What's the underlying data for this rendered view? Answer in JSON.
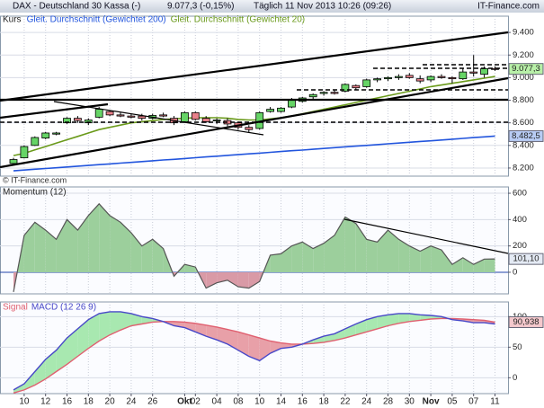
{
  "header": {
    "title": "DAX - Deutschland 30 Kassa (-)",
    "quote": "9.077,3 (-0,15%)",
    "timestamp": "Täglich  11 Nov 2013 10:26 (09:26)",
    "brand": "IT-Finance.com"
  },
  "chart_data": [
    {
      "type": "candlestick",
      "legend_title": "Kurs",
      "watermark": "© IT-Finance.com",
      "categories": [
        null,
        "10",
        null,
        "12",
        null,
        "16",
        null,
        "18",
        null,
        "20",
        null,
        "24",
        null,
        "26",
        null,
        null,
        "Okt",
        "02",
        null,
        "04",
        null,
        "08",
        null,
        "10",
        null,
        "14",
        null,
        "16",
        null,
        "18",
        null,
        "22",
        null,
        "24",
        null,
        "28",
        null,
        "30",
        null,
        "Nov",
        null,
        "05",
        null,
        "07",
        null,
        "11"
      ],
      "open": [
        8240,
        8290,
        8400,
        8465,
        8500,
        8600,
        8640,
        8600,
        8650,
        8700,
        8670,
        8660,
        8660,
        8640,
        8670,
        8640,
        8610,
        8690,
        8640,
        8620,
        8620,
        8600,
        8560,
        8550,
        8700,
        8700,
        8740,
        8790,
        8830,
        8860,
        8870,
        8880,
        8930,
        8920,
        8980,
        8990,
        9000,
        9020,
        8990,
        8980,
        9010,
        9000,
        8990,
        9050,
        9030,
        9080
      ],
      "high": [
        8290,
        8400,
        8480,
        8520,
        8520,
        8650,
        8660,
        8640,
        8740,
        8710,
        8690,
        8680,
        8680,
        8680,
        8690,
        8660,
        8700,
        8700,
        8660,
        8640,
        8640,
        8610,
        8580,
        8700,
        8740,
        8740,
        8820,
        8830,
        8860,
        8880,
        8890,
        8950,
        8940,
        8990,
        9000,
        9010,
        9030,
        9040,
        9020,
        9020,
        9030,
        9010,
        9080,
        9200,
        9100,
        9100
      ],
      "low": [
        8230,
        8285,
        8395,
        8455,
        8490,
        8590,
        8600,
        8580,
        8640,
        8660,
        8650,
        8640,
        8620,
        8630,
        8650,
        8580,
        8600,
        8620,
        8600,
        8590,
        8570,
        8540,
        8510,
        8540,
        8690,
        8690,
        8730,
        8780,
        8810,
        8840,
        8850,
        8870,
        8890,
        8910,
        8960,
        8970,
        8980,
        8990,
        8950,
        8960,
        8990,
        8950,
        8980,
        9010,
        9000,
        9060
      ],
      "close": [
        8275,
        8390,
        8470,
        8510,
        8510,
        8640,
        8620,
        8625,
        8720,
        8670,
        8660,
        8650,
        8640,
        8665,
        8660,
        8600,
        8690,
        8630,
        8610,
        8625,
        8590,
        8560,
        8540,
        8690,
        8720,
        8730,
        8800,
        8820,
        8850,
        8870,
        8860,
        8940,
        8910,
        8980,
        8990,
        9000,
        9010,
        9000,
        8970,
        9010,
        9000,
        8990,
        9050,
        9040,
        9080,
        9077.3
      ],
      "close_labels": [
        null,
        null,
        null,
        null,
        null,
        null,
        null,
        null,
        null,
        null,
        null,
        null,
        null,
        null,
        null,
        null,
        null,
        null,
        null,
        null,
        null,
        null,
        null,
        null,
        null,
        null,
        null,
        null,
        null,
        null,
        null,
        null,
        null,
        null,
        null,
        null,
        null,
        null,
        null,
        null,
        null,
        null,
        null,
        null,
        null,
        "9.077,3"
      ],
      "up_color": "#66d466",
      "down_color": "#e8808a",
      "label_color": "#b8f0a8",
      "series": [
        {
          "name": "Gleit. Durchschnitt (Gewichtet 200)",
          "color": "#2255dd",
          "values": [
            8175,
            8182,
            8189,
            8196,
            8202,
            8209,
            8216,
            8223,
            8230,
            8236,
            8243,
            8250,
            8257,
            8264,
            8271,
            8277,
            8284,
            8291,
            8298,
            8305,
            8312,
            8318,
            8325,
            8332,
            8339,
            8346,
            8353,
            8359,
            8366,
            8373,
            8380,
            8387,
            8394,
            8400,
            8407,
            8414,
            8421,
            8428,
            8435,
            8441,
            8448,
            8455,
            8462,
            8469,
            8476,
            8482.5
          ],
          "value_labels": [
            null,
            null,
            null,
            null,
            null,
            null,
            null,
            null,
            null,
            null,
            null,
            null,
            null,
            null,
            null,
            null,
            null,
            null,
            null,
            null,
            null,
            null,
            null,
            null,
            null,
            null,
            null,
            null,
            null,
            null,
            null,
            null,
            null,
            null,
            null,
            null,
            null,
            null,
            null,
            null,
            null,
            null,
            null,
            null,
            null,
            "8.482,5"
          ],
          "label_color": "#b8ccf4"
        },
        {
          "name": "Gleit. Durchschnitt (Gewichtet 20)",
          "color": "#6a9a1a",
          "values": [
            8310,
            8330,
            8360,
            8390,
            8420,
            8450,
            8480,
            8510,
            8540,
            8560,
            8580,
            8600,
            8610,
            8620,
            8630,
            8635,
            8640,
            8645,
            8645,
            8645,
            8640,
            8630,
            8625,
            8625,
            8635,
            8645,
            8660,
            8680,
            8700,
            8720,
            8740,
            8760,
            8780,
            8800,
            8820,
            8840,
            8860,
            8880,
            8900,
            8920,
            8935,
            8950,
            8965,
            8980,
            8995,
            9010
          ]
        }
      ],
      "ylim": [
        8128,
        9544
      ],
      "yticks": [
        {
          "value": 8200,
          "label": "8.200"
        },
        {
          "value": 8400,
          "label": "8.400"
        },
        {
          "value": 8600,
          "label": "8.600"
        },
        {
          "value": 8800,
          "label": "8.800"
        },
        {
          "value": 9000,
          "label": "9.000"
        },
        {
          "value": 9200,
          "label": "9.200"
        },
        {
          "value": 9400,
          "label": "9.400"
        }
      ],
      "grid": true
    },
    {
      "type": "area",
      "title": "Momentum (12)",
      "color": "#555555",
      "up_color": "#9ccf9c",
      "down_color": "#d99aa6",
      "label_color": "#e4eaf4",
      "values": [
        -150,
        280,
        380,
        320,
        250,
        400,
        320,
        430,
        520,
        430,
        380,
        300,
        200,
        250,
        180,
        -30,
        60,
        40,
        -120,
        -80,
        -60,
        -110,
        -120,
        -70,
        130,
        140,
        200,
        230,
        180,
        220,
        280,
        420,
        370,
        250,
        230,
        320,
        250,
        200,
        160,
        200,
        170,
        60,
        110,
        60,
        100,
        101.1
      ],
      "value_labels": [
        null,
        null,
        null,
        null,
        null,
        null,
        null,
        null,
        null,
        null,
        null,
        null,
        null,
        null,
        null,
        null,
        null,
        null,
        null,
        null,
        null,
        null,
        null,
        null,
        null,
        null,
        null,
        null,
        null,
        null,
        null,
        null,
        null,
        null,
        null,
        null,
        null,
        null,
        null,
        null,
        null,
        null,
        null,
        null,
        null,
        "101,10"
      ],
      "ylim": [
        -164,
        648
      ],
      "yticks": [
        0,
        200,
        400,
        600
      ],
      "grid": true
    },
    {
      "type": "line",
      "up_color": "#a8e8b0",
      "down_color": "#e8a0a8",
      "series": [
        {
          "name": "Signal",
          "color": "#e06070",
          "values": [
            -25,
            -20,
            -12,
            -2,
            10,
            22,
            35,
            48,
            60,
            70,
            78,
            85,
            88,
            91,
            92,
            92,
            91,
            89,
            86,
            83,
            79,
            75,
            70,
            65,
            60,
            57,
            55,
            55,
            56,
            58,
            61,
            65,
            70,
            75,
            80,
            85,
            89,
            92,
            94,
            96,
            97,
            97,
            96,
            95,
            94,
            90.938
          ],
          "value_labels": [
            null,
            null,
            null,
            null,
            null,
            null,
            null,
            null,
            null,
            null,
            null,
            null,
            null,
            null,
            null,
            null,
            null,
            null,
            null,
            null,
            null,
            null,
            null,
            null,
            null,
            null,
            null,
            null,
            null,
            null,
            null,
            null,
            null,
            null,
            null,
            null,
            null,
            null,
            null,
            null,
            null,
            null,
            null,
            null,
            null,
            "90,938"
          ],
          "label_color": "#f4c8cc"
        },
        {
          "name": "MACD (12 26 9)",
          "color": "#4848c8",
          "values": [
            -20,
            -10,
            10,
            30,
            45,
            65,
            80,
            95,
            105,
            108,
            108,
            105,
            100,
            97,
            92,
            85,
            82,
            75,
            68,
            62,
            55,
            45,
            35,
            28,
            40,
            48,
            50,
            55,
            62,
            68,
            72,
            80,
            88,
            95,
            100,
            103,
            105,
            105,
            103,
            102,
            100,
            95,
            93,
            90,
            90,
            88
          ]
        }
      ],
      "ylim": [
        -26,
        124
      ],
      "yticks": [
        0,
        50,
        100
      ],
      "grid": true
    }
  ]
}
